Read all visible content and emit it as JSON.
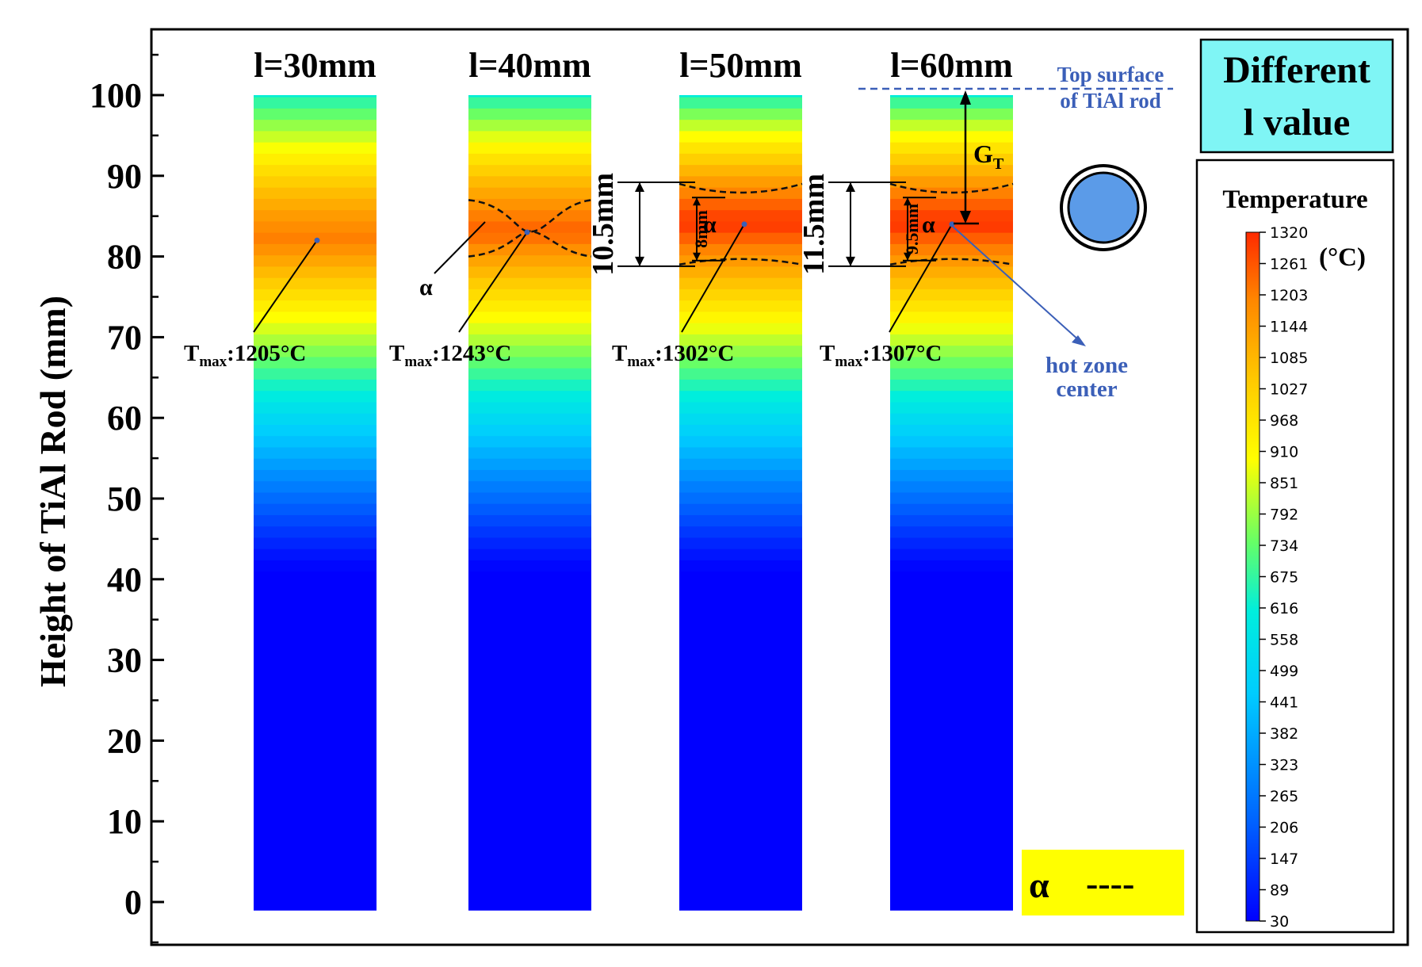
{
  "chart_data": {
    "type": "heatmap",
    "ylabel": "Height of TiAl Rod (mm)",
    "yticks": [
      0,
      10,
      20,
      30,
      40,
      50,
      60,
      70,
      80,
      90,
      100
    ],
    "ylim": [
      -5,
      108
    ],
    "series": [
      {
        "label": "l=30mm",
        "tmax_label": "T",
        "tmax_sub": "max",
        "tmax_value": ":1205°C",
        "tmax": 1205,
        "hot_center_height": 82,
        "alpha_zone": null
      },
      {
        "label": "l=40mm",
        "tmax_label": "T",
        "tmax_sub": "max",
        "tmax_value": ":1243°C",
        "tmax": 1243,
        "hot_center_height": 83,
        "alpha_zone": {
          "top": 87,
          "bottom": 80
        }
      },
      {
        "label": "l=50mm",
        "tmax_label": "T",
        "tmax_sub": "max",
        "tmax_value": ":1302°C",
        "tmax": 1302,
        "hot_center_height": 84,
        "alpha_zone": {
          "top": 89,
          "bottom": 79
        },
        "outer_height_label": "10.5mm",
        "inner_height_label": "8mm",
        "alpha_label": "α"
      },
      {
        "label": "l=60mm",
        "tmax_label": "T",
        "tmax_sub": "max",
        "tmax_value": ":1307°C",
        "tmax": 1307,
        "hot_center_height": 84,
        "alpha_zone": {
          "top": 89,
          "bottom": 79
        },
        "outer_height_label": "11.5mm",
        "inner_height_label": "9.5mm",
        "alpha_label": "α"
      }
    ],
    "annotations": {
      "alpha_pointer": "α",
      "top_surface": [
        "Top surface",
        "of TiAl rod"
      ],
      "gt_label": "G",
      "gt_sub": "T",
      "hot_zone": [
        "hot zone",
        "center"
      ],
      "title_box": [
        "Different",
        "l value"
      ],
      "legend_symbol": "α",
      "legend_line": "----"
    },
    "colorbar": {
      "title": "Temperature",
      "unit": "(°C)",
      "ticks": [
        1320,
        1261,
        1203,
        1144,
        1085,
        1027,
        968,
        910,
        851,
        792,
        734,
        675,
        616,
        558,
        499,
        441,
        382,
        323,
        265,
        206,
        147,
        89,
        30
      ],
      "range": [
        30,
        1320
      ]
    },
    "colors": {
      "title_box_fill": "#7ff5f5",
      "legend_fill": "#ffff00",
      "annotation_blue": "#3b5fb8",
      "dashed_line": "#111111"
    }
  }
}
